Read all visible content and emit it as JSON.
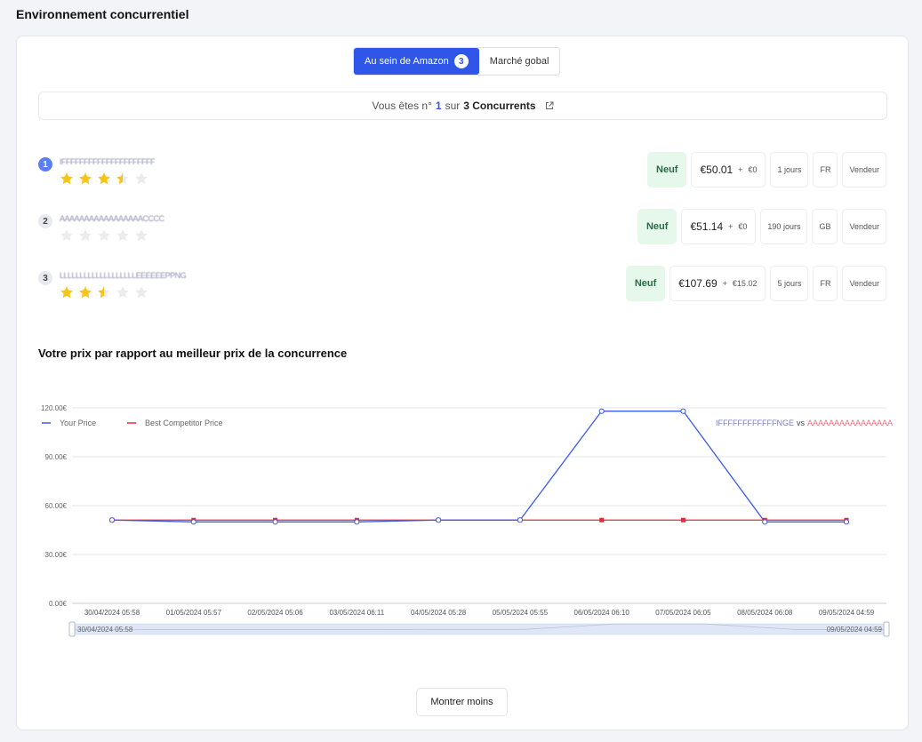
{
  "page": {
    "title": "Environnement concurrentiel"
  },
  "toggle": {
    "active_label": "Au sein de Amazon",
    "active_count": "3",
    "inactive_label": "Marché gobal"
  },
  "rank": {
    "prefix": "Vous êtes n°",
    "position": "1",
    "middle": "sur",
    "total": "3 Concurrents"
  },
  "competitors": [
    {
      "rank": "1",
      "name": "IFFFFFFFFFFFFFFFFFFFFF",
      "rating": 3.5,
      "condition": "Neuf",
      "price": "€50.01",
      "plus": "+",
      "shipping": "€0",
      "delivery": "1 jours",
      "country": "FR",
      "type": "Vendeur"
    },
    {
      "rank": "2",
      "name": "AAAAAAAAAAAAAAAAACCCC",
      "rating": 0,
      "condition": "Neuf",
      "price": "€51.14",
      "plus": "+",
      "shipping": "€0",
      "delivery": "190 jours",
      "country": "GB",
      "type": "Vendeur"
    },
    {
      "rank": "3",
      "name": "LLLLLLLLLLLLLLLLLLLEEEEEEPPNG",
      "rating": 2.5,
      "condition": "Neuf",
      "price": "€107.69",
      "plus": "+",
      "shipping": "€15.02",
      "delivery": "5 jours",
      "country": "FR",
      "type": "Vendeur"
    }
  ],
  "colors": {
    "your_price": "#3b5be8",
    "competitor": "#e8283c",
    "accent": "#2f56e8",
    "star": "#f5c518"
  },
  "chart_data": {
    "type": "line",
    "title": "Votre prix par rapport au meilleur prix de la concurrence",
    "comparison_label": {
      "left": "IFFFFFFFFFFFFNGE",
      "vs": "vs",
      "right": "AAAAAAAAAAAAAAAA"
    },
    "x": [
      "30/04/2024 05:58",
      "01/05/2024 05:57",
      "02/05/2024 05:06",
      "03/05/2024 06:11",
      "04/05/2024 05:28",
      "05/05/2024 05:55",
      "06/05/2024 06:10",
      "07/05/2024 06:05",
      "08/05/2024 06:08",
      "09/05/2024 04:59"
    ],
    "series": [
      {
        "name": "Your Price",
        "values": [
          51.14,
          50.01,
          50.01,
          50.01,
          51.14,
          51.14,
          118,
          118,
          50.01,
          50.01
        ]
      },
      {
        "name": "Best Competitor Price",
        "values": [
          51.14,
          51.14,
          51.14,
          51.14,
          51.14,
          51.14,
          51.14,
          51.14,
          51.14,
          51.14
        ]
      }
    ],
    "ylim": [
      0,
      120
    ],
    "yticks": [
      0,
      30,
      60,
      90,
      120
    ],
    "ytick_labels": [
      "0.00€",
      "30.00€",
      "60.00€",
      "90.00€",
      "120.00€"
    ],
    "grid": true,
    "legend": "top-left",
    "zoom": {
      "start_label": "30/04/2024 05:58",
      "end_label": "09/05/2024 04:59"
    }
  },
  "footer": {
    "button_label": "Montrer moins"
  }
}
